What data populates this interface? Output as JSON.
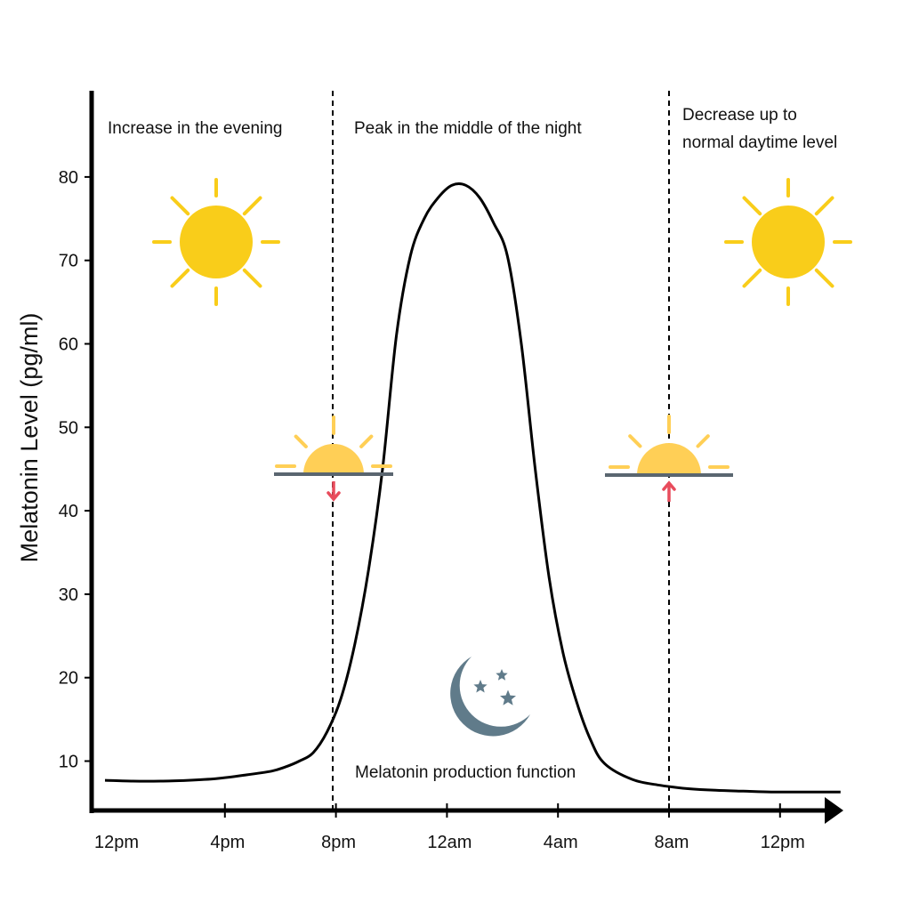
{
  "chart_data": {
    "type": "line",
    "title": "",
    "ylabel": "Melatonin Level (pg/ml)",
    "xlabel": "",
    "ylim": [
      4,
      86
    ],
    "yticks": [
      10,
      20,
      30,
      40,
      50,
      60,
      70,
      80
    ],
    "xticks": [
      "12pm",
      "4pm",
      "8pm",
      "12am",
      "4am",
      "8am",
      "12pm"
    ],
    "grid": false,
    "series": [
      {
        "name": "Melatonin production function",
        "x": [
          0,
          1,
          2,
          3,
          4,
          5,
          6,
          6.5,
          7,
          7.5,
          8,
          8.5,
          9,
          9.5,
          10,
          10.5,
          11,
          11.5,
          12,
          12.5,
          13,
          13.5,
          14,
          14.5,
          15,
          15.5,
          16,
          16.5,
          17,
          17.5,
          18,
          19,
          20,
          21,
          22,
          23,
          24,
          25,
          26.5
        ],
        "values": [
          7.7,
          7.6,
          7.6,
          7.7,
          7.9,
          8.3,
          8.8,
          9.3,
          10.0,
          11.0,
          13.5,
          17.5,
          24.0,
          33.0,
          45.0,
          61.0,
          70.5,
          75.0,
          77.5,
          79.0,
          79.0,
          77.5,
          74.5,
          70.5,
          60.0,
          45.0,
          32.0,
          23.0,
          17.0,
          12.5,
          9.7,
          7.8,
          7.1,
          6.7,
          6.5,
          6.4,
          6.3,
          6.3,
          6.3
        ]
      }
    ],
    "vlines": [
      {
        "x": 8,
        "style": "dashed"
      },
      {
        "x": 20,
        "style": "dashed"
      }
    ],
    "annotations": {
      "evening": "Increase in the evening",
      "night": "Peak in the middle of the night",
      "morning_line1": "Decrease up to",
      "morning_line2": "normal daytime level",
      "function_label": "Melatonin production function"
    },
    "icons": [
      "sun-icon",
      "sunset-icon",
      "moon-stars-icon",
      "sunrise-icon",
      "sun-icon"
    ],
    "colors": {
      "line": "#000000",
      "sun": "#F9CD1A",
      "half_sun": "#FFCF56",
      "horizon": "#5A6670",
      "sunset_arrow": "#E84C5C",
      "sunrise_arrow": "#E84C5C",
      "moon": "#607B8A"
    }
  }
}
